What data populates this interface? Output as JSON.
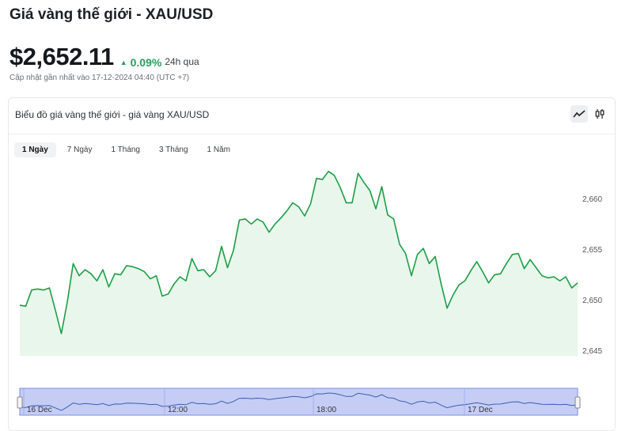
{
  "header": {
    "title": "Giá vàng thế giới - XAU/USD",
    "price": "$2,652.11",
    "change": "0.09%",
    "change_period": "24h qua",
    "updated": "Cập nhật gần nhất vào 17-12-2024 04:40 (UTC +7)"
  },
  "card": {
    "title": "Biểu đồ giá vàng thế giới - giá vàng XAU/USD",
    "chart_type_buttons": [
      {
        "name": "line-chart-icon",
        "active": true
      },
      {
        "name": "candlestick-icon",
        "active": false
      }
    ],
    "tabs": [
      {
        "label": "1 Ngày",
        "active": true
      },
      {
        "label": "7 Ngày",
        "active": false
      },
      {
        "label": "1 Tháng",
        "active": false
      },
      {
        "label": "3 Tháng",
        "active": false
      },
      {
        "label": "1 Năm",
        "active": false
      }
    ]
  },
  "colors": {
    "line": "#1e9e45",
    "fill": "#e8f6ec",
    "navigator": "#c5cdf5",
    "up": "#2a9d5c"
  },
  "chart_data": {
    "type": "area",
    "ylim": [
      2644.5,
      2664
    ],
    "yticks": [
      2645,
      2650,
      2655,
      2660
    ],
    "ytick_labels": [
      "2,645",
      "2,650",
      "2,655",
      "2,660"
    ],
    "values": [
      2649.5,
      2649.4,
      2651.0,
      2651.1,
      2651.0,
      2651.2,
      2649.0,
      2646.7,
      2649.8,
      2653.6,
      2652.4,
      2653.0,
      2652.6,
      2651.9,
      2653.0,
      2651.3,
      2652.6,
      2652.5,
      2653.4,
      2653.3,
      2653.1,
      2652.8,
      2652.1,
      2652.4,
      2650.4,
      2650.6,
      2651.6,
      2652.3,
      2651.9,
      2654.1,
      2652.9,
      2653.0,
      2652.3,
      2652.9,
      2655.3,
      2653.2,
      2654.9,
      2657.9,
      2658.0,
      2657.5,
      2658.0,
      2657.7,
      2656.7,
      2657.5,
      2658.1,
      2658.8,
      2659.6,
      2659.2,
      2658.3,
      2659.5,
      2662.0,
      2661.9,
      2662.7,
      2662.3,
      2661.1,
      2659.6,
      2659.6,
      2662.5,
      2661.6,
      2660.8,
      2659.0,
      2661.2,
      2658.4,
      2658.0,
      2655.5,
      2654.6,
      2652.4,
      2654.5,
      2655.1,
      2653.6,
      2654.3,
      2651.6,
      2649.2,
      2650.5,
      2651.5,
      2651.9,
      2652.9,
      2653.8,
      2652.8,
      2651.7,
      2652.5,
      2652.6,
      2653.6,
      2654.5,
      2654.6,
      2653.1,
      2654.0,
      2653.2,
      2652.4,
      2652.2,
      2652.3,
      2651.9,
      2652.3,
      2651.2,
      2651.7
    ],
    "navigator": {
      "labels": [
        "16 Dec",
        "12:00",
        "18:00",
        "17 Dec"
      ]
    }
  }
}
